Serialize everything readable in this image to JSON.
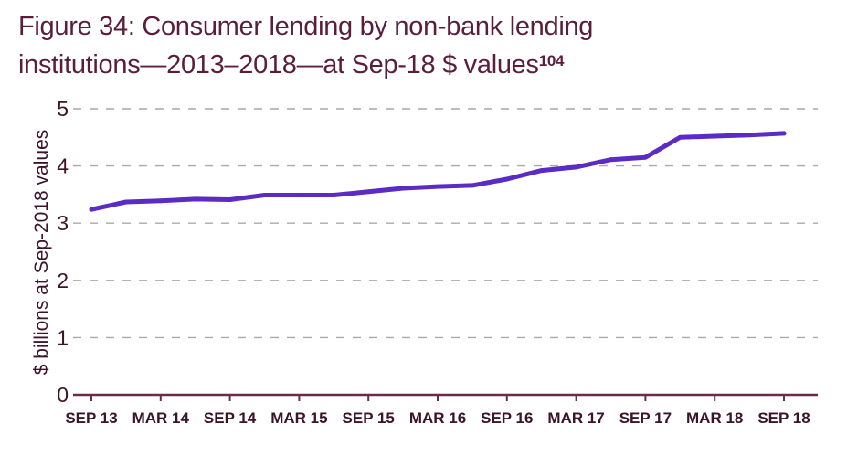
{
  "title": {
    "line1": "Figure 34: Consumer lending by non-bank lending",
    "line2": "institutions—2013–2018—at Sep-18 $ values",
    "footnote": "104"
  },
  "colors": {
    "title": "#5a1e3c",
    "axis_text": "#3b1428",
    "line": "#5b2bc4",
    "grid": "#a9a9a9",
    "axis": "#6b2a4a"
  },
  "chart_data": {
    "type": "line",
    "ylabel": "$ billions at Sep-2018 values",
    "ylim": [
      0,
      5
    ],
    "yticks": [
      "0",
      "1",
      "2",
      "3",
      "4",
      "5"
    ],
    "grid": "horizontal dashed",
    "categories": [
      "SEP 13",
      "MAR 14",
      "SEP 14",
      "MAR 15",
      "SEP 15",
      "MAR 16",
      "SEP 16",
      "MAR 17",
      "SEP 17",
      "MAR 18",
      "SEP 18"
    ],
    "x": [
      "Sep 13",
      "Dec 13",
      "Mar 14",
      "Jun 14",
      "Sep 14",
      "Dec 14",
      "Mar 15",
      "Jun 15",
      "Sep 15",
      "Dec 15",
      "Mar 16",
      "Jun 16",
      "Sep 16",
      "Dec 16",
      "Mar 17",
      "Jun 17",
      "Sep 17",
      "Dec 17",
      "Mar 18",
      "Jun 18",
      "Sep 18"
    ],
    "series": [
      {
        "values": [
          3.24,
          3.37,
          3.39,
          3.42,
          3.41,
          3.49,
          3.49,
          3.49,
          3.55,
          3.61,
          3.64,
          3.66,
          3.77,
          3.92,
          3.98,
          4.11,
          4.15,
          4.5,
          4.52,
          4.54,
          4.57
        ]
      }
    ]
  }
}
